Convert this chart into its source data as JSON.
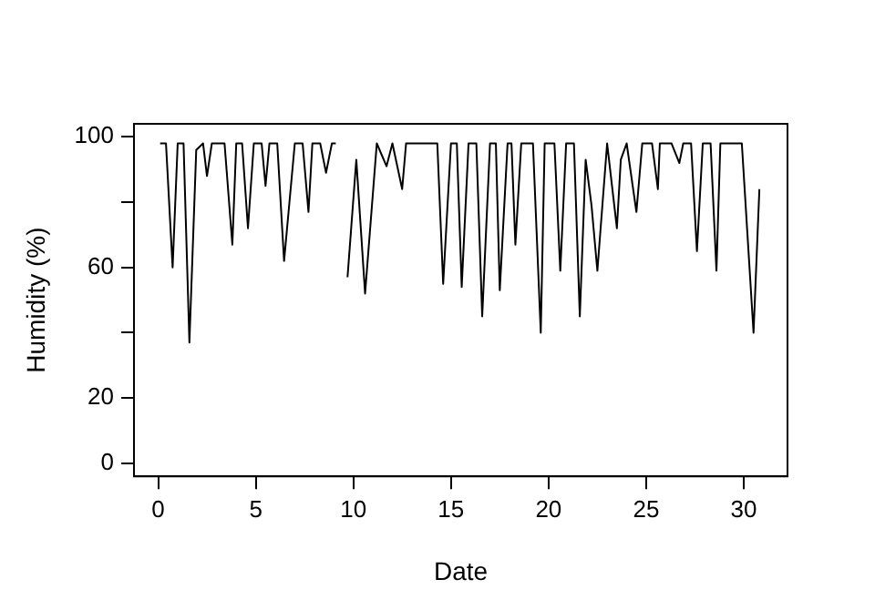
{
  "chart_data": {
    "type": "line",
    "xlabel": "Date",
    "ylabel": "Humidity (%)",
    "x": [
      0.1,
      0.4,
      0.74,
      1.0,
      1.3,
      1.6,
      1.95,
      2.3,
      2.5,
      2.75,
      3.4,
      3.8,
      4.0,
      4.3,
      4.6,
      4.9,
      5.3,
      5.5,
      5.7,
      6.1,
      6.45,
      7.0,
      7.4,
      7.7,
      7.9,
      8.3,
      8.6,
      8.9,
      9.1,
      9.4,
      9.7,
      10.15,
      10.6,
      11.2,
      11.7,
      12.0,
      12.5,
      12.7,
      13.5,
      14.3,
      14.6,
      15.0,
      15.3,
      15.55,
      15.9,
      16.3,
      16.6,
      17.0,
      17.3,
      17.5,
      17.9,
      18.1,
      18.3,
      18.6,
      19.2,
      19.6,
      19.8,
      20.3,
      20.6,
      20.9,
      21.3,
      21.6,
      21.9,
      22.2,
      22.5,
      23.0,
      23.5,
      23.7,
      24.0,
      24.5,
      24.8,
      25.3,
      25.6,
      25.7,
      26.3,
      26.7,
      26.9,
      27.3,
      27.6,
      27.9,
      28.3,
      28.6,
      28.8,
      29.4,
      29.9,
      30.5,
      30.8
    ],
    "series": [
      {
        "color": "#000000",
        "values": [
          98,
          98,
          60,
          98,
          98,
          37,
          96,
          98,
          88,
          98,
          98,
          67,
          98,
          98,
          72,
          98,
          98,
          85,
          98,
          98,
          62,
          98,
          98,
          77,
          98,
          98,
          89,
          98,
          98,
          null,
          57,
          93,
          52,
          98,
          91,
          98,
          84,
          98,
          98,
          98,
          55,
          98,
          98,
          54,
          98,
          98,
          45,
          98,
          98,
          53,
          98,
          98,
          67,
          98,
          98,
          40,
          98,
          98,
          59,
          98,
          98,
          45,
          93,
          79,
          59,
          98,
          72,
          93,
          98,
          77,
          98,
          98,
          84,
          98,
          98,
          92,
          98,
          98,
          65,
          98,
          98,
          59,
          98,
          98,
          98,
          40,
          84
        ]
      }
    ],
    "xlim": [
      -1.24,
      32.24
    ],
    "ylim": [
      -4,
      104
    ],
    "xticks": [
      0,
      5,
      10,
      15,
      20,
      25,
      30
    ],
    "yticks": [
      0,
      20,
      {
        "value": 40,
        "label": null
      },
      60,
      {
        "value": 80,
        "label": null
      },
      100
    ],
    "grid": false,
    "legend": false,
    "marker": "none",
    "line_style": "solid"
  }
}
